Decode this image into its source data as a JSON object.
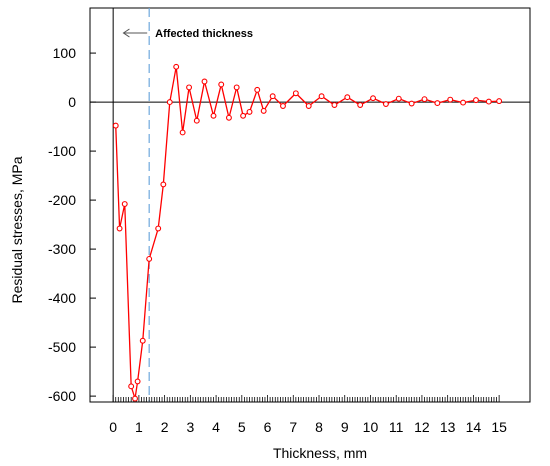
{
  "chart_data": {
    "type": "line",
    "title": "",
    "xlabel": "Thickness, mm",
    "ylabel": "Residual stresses, MPa",
    "xlim": [
      -0.9,
      16.2
    ],
    "ylim": [
      -612,
      192
    ],
    "x_ticks": [
      0,
      1,
      2,
      3,
      4,
      5,
      6,
      7,
      8,
      9,
      10,
      11,
      12,
      13,
      14,
      15
    ],
    "x_tick_labels": [
      "0",
      "1",
      "2",
      "3",
      "4",
      "5",
      "6",
      "7",
      "8",
      "9",
      "10",
      "11",
      "12",
      "13",
      "14",
      "15"
    ],
    "x_minor_step": 0.1,
    "y_ticks": [
      100,
      0,
      -100,
      -200,
      -300,
      -400,
      -500,
      -600
    ],
    "y_tick_labels": [
      "100",
      "0",
      "-100",
      "-200",
      "-300",
      "-400",
      "-500",
      "-600"
    ],
    "grid": false,
    "zero_line": true,
    "annotation": {
      "text": "Affected thickness",
      "affected_thickness_x": 1.4,
      "arrow_tail_x": 1.4,
      "arrow_head_x": 0.4,
      "y": 141
    },
    "colors": {
      "series": "#ff0000",
      "marker_fill": "#ffffff",
      "affected_line": "#6fa8dc",
      "axis": "#000000",
      "annotation_arrow": "#555555"
    },
    "series": [
      {
        "marker": "circle",
        "x": [
          0.1,
          0.25,
          0.45,
          0.7,
          0.85,
          0.95,
          1.15,
          1.4,
          1.75,
          1.95,
          2.2,
          2.45,
          2.7,
          2.95,
          3.25,
          3.55,
          3.9,
          4.2,
          4.5,
          4.8,
          5.05,
          5.3,
          5.6,
          5.85,
          6.2,
          6.6,
          7.1,
          7.6,
          8.1,
          8.6,
          9.1,
          9.6,
          10.1,
          10.6,
          11.1,
          11.6,
          12.1,
          12.6,
          13.1,
          13.6,
          14.1,
          14.6,
          15.0
        ],
        "y": [
          -48,
          -258,
          -208,
          -580,
          -605,
          -570,
          -487,
          -320,
          -258,
          -168,
          0,
          72,
          -62,
          30,
          -38,
          42,
          -28,
          36,
          -32,
          30,
          -28,
          -20,
          25,
          -18,
          12,
          -8,
          18,
          -8,
          12,
          -6,
          10,
          -6,
          8,
          -4,
          7,
          -3,
          6,
          -2,
          5,
          -1,
          4,
          1,
          2
        ]
      }
    ]
  }
}
